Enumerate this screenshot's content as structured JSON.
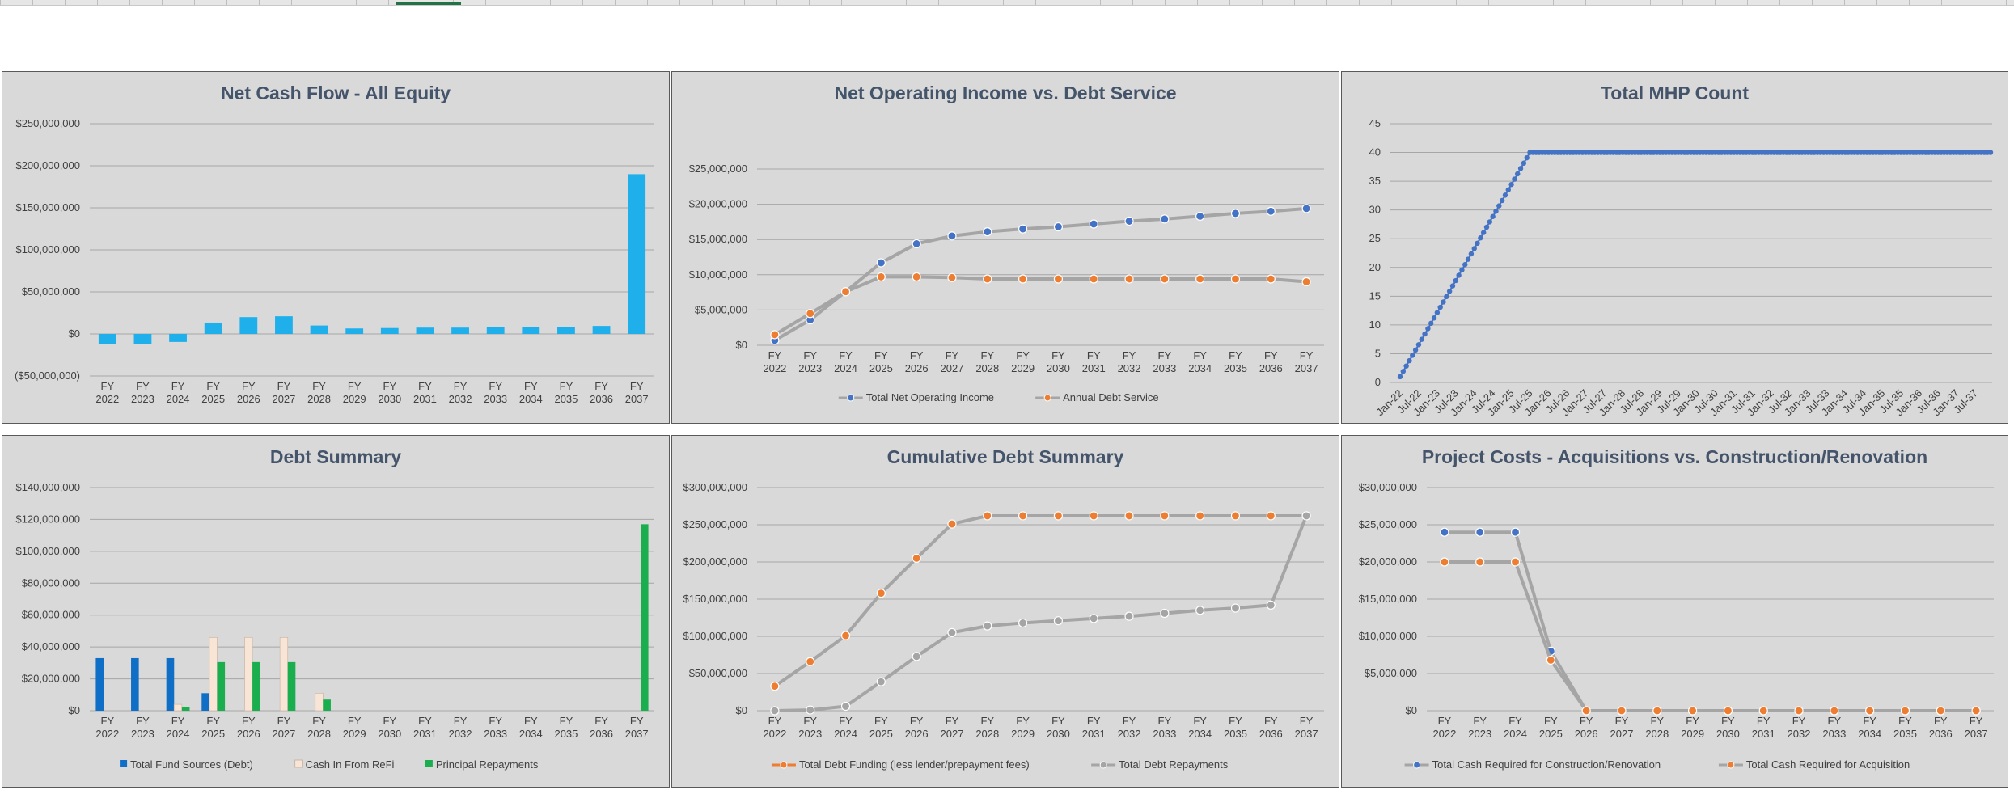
{
  "chart_data": [
    {
      "type": "bar",
      "title": "Net Cash Flow - All Equity",
      "categories": [
        "FY 2022",
        "FY 2023",
        "FY 2024",
        "FY 2025",
        "FY 2026",
        "FY 2027",
        "FY 2028",
        "FY 2029",
        "FY 2030",
        "FY 2031",
        "FY 2032",
        "FY 2033",
        "FY 2034",
        "FY 2035",
        "FY 2036",
        "FY 2037"
      ],
      "series": [
        {
          "values": [
            -12000000,
            -12500000,
            -9500000,
            13500000,
            20000000,
            21000000,
            10000000,
            6500000,
            7000000,
            7500000,
            7500000,
            8000000,
            8500000,
            8500000,
            9500000,
            190000000
          ],
          "color": "#1fb0ec"
        }
      ],
      "yticks": [
        "$250,000,000",
        "$200,000,000",
        "$150,000,000",
        "$100,000,000",
        "$50,000,000",
        "$0",
        "($50,000,000)"
      ],
      "ylim": [
        -50000000,
        250000000
      ],
      "legend": "none"
    },
    {
      "type": "line",
      "title": "Net Operating Income vs. Debt Service",
      "categories": [
        "FY 2022",
        "FY 2023",
        "FY 2024",
        "FY 2025",
        "FY 2026",
        "FY 2027",
        "FY 2028",
        "FY 2029",
        "FY 2030",
        "FY 2031",
        "FY 2032",
        "FY 2033",
        "FY 2034",
        "FY 2035",
        "FY 2036",
        "FY 2037"
      ],
      "series": [
        {
          "name": "Total Net Operating Income",
          "values": [
            700000,
            3600000,
            7600000,
            11700000,
            14400000,
            15500000,
            16100000,
            16500000,
            16800000,
            17200000,
            17600000,
            17900000,
            18300000,
            18700000,
            19000000,
            19400000
          ],
          "color": "#4472c4"
        },
        {
          "name": "Annual Debt Service",
          "values": [
            1500000,
            4500000,
            7600000,
            9700000,
            9700000,
            9600000,
            9400000,
            9400000,
            9400000,
            9400000,
            9400000,
            9400000,
            9400000,
            9400000,
            9400000,
            9000000
          ],
          "color": "#ed7d31"
        }
      ],
      "yticks": [
        "$25,000,000",
        "$20,000,000",
        "$15,000,000",
        "$10,000,000",
        "$5,000,000",
        "$0"
      ],
      "ylim": [
        0,
        25000000
      ],
      "legend": "bottom"
    },
    {
      "type": "line",
      "title": "Total MHP Count",
      "x_start": "Jan-22",
      "x_tick_labels": [
        "Jan-22",
        "Jul-22",
        "Jan-23",
        "Jul-23",
        "Jan-24",
        "Jul-24",
        "Jan-25",
        "Jul-25",
        "Jan-26",
        "Jul-26",
        "Jan-27",
        "Jul-27",
        "Jan-28",
        "Jul-28",
        "Jan-29",
        "Jul-29",
        "Jan-30",
        "Jul-30",
        "Jan-31",
        "Jul-31",
        "Jan-32",
        "Jul-32",
        "Jan-33",
        "Jul-33",
        "Jan-34",
        "Jul-34",
        "Jan-35",
        "Jul-35",
        "Jan-36",
        "Jul-36",
        "Jan-37",
        "Jul-37"
      ],
      "series": [
        {
          "ramp_from": 1,
          "ramp_to": 40,
          "ramp_months": 43,
          "plateau": 40,
          "total_months": 192,
          "color": "#4472c4"
        }
      ],
      "yticks": [
        "45",
        "40",
        "35",
        "30",
        "25",
        "20",
        "15",
        "10",
        "5",
        "0"
      ],
      "ylim": [
        0,
        45
      ],
      "legend": "none"
    },
    {
      "type": "bar",
      "title": "Debt Summary",
      "categories": [
        "FY 2022",
        "FY 2023",
        "FY 2024",
        "FY 2025",
        "FY 2026",
        "FY 2027",
        "FY 2028",
        "FY 2029",
        "FY 2030",
        "FY 2031",
        "FY 2032",
        "FY 2033",
        "FY 2034",
        "FY 2035",
        "FY 2036",
        "FY 2037"
      ],
      "series": [
        {
          "name": "Total Fund Sources (Debt)",
          "values": [
            33000000,
            33000000,
            33000000,
            11000000,
            0,
            0,
            0,
            0,
            0,
            0,
            0,
            0,
            0,
            0,
            0,
            0
          ],
          "color": "#0f6fc6"
        },
        {
          "name": "Cash In From ReFi",
          "values": [
            0,
            0,
            4000000,
            46000000,
            46000000,
            46000000,
            11000000,
            0,
            0,
            0,
            0,
            0,
            0,
            0,
            0,
            0
          ],
          "color": "#f9e5d6"
        },
        {
          "name": "Principal Repayments",
          "values": [
            0,
            0,
            2500000,
            30500000,
            30500000,
            30500000,
            7000000,
            0,
            0,
            0,
            0,
            0,
            0,
            0,
            0,
            117000000
          ],
          "color": "#1aae4e"
        }
      ],
      "yticks": [
        "$140,000,000",
        "$120,000,000",
        "$100,000,000",
        "$80,000,000",
        "$60,000,000",
        "$40,000,000",
        "$20,000,000",
        "$0"
      ],
      "ylim": [
        0,
        140000000
      ],
      "legend": "bottom"
    },
    {
      "type": "line",
      "title": "Cumulative Debt Summary",
      "categories": [
        "FY 2022",
        "FY 2023",
        "FY 2024",
        "FY 2025",
        "FY 2026",
        "FY 2027",
        "FY 2028",
        "FY 2029",
        "FY 2030",
        "FY 2031",
        "FY 2032",
        "FY 2033",
        "FY 2034",
        "FY 2035",
        "FY 2036",
        "FY 2037"
      ],
      "series": [
        {
          "name": "Total Debt Funding (less lender/prepayment fees)",
          "values": [
            33000000,
            66000000,
            101000000,
            158000000,
            205000000,
            251000000,
            262000000,
            262000000,
            262000000,
            262000000,
            262000000,
            262000000,
            262000000,
            262000000,
            262000000,
            262000000
          ],
          "color": "#ed7d31"
        },
        {
          "name": "Total Debt Repayments",
          "values": [
            0,
            1000000,
            6000000,
            39000000,
            73000000,
            105000000,
            114000000,
            118000000,
            121000000,
            124000000,
            127000000,
            131000000,
            135000000,
            138000000,
            142000000,
            262000000
          ],
          "color": "#a5a5a5"
        }
      ],
      "yticks": [
        "$300,000,000",
        "$250,000,000",
        "$200,000,000",
        "$150,000,000",
        "$100,000,000",
        "$50,000,000",
        "$0"
      ],
      "ylim": [
        0,
        300000000
      ],
      "legend": "bottom"
    },
    {
      "type": "line",
      "title": "Project Costs - Acquisitions vs. Construction/Renovation",
      "categories": [
        "FY 2022",
        "FY 2023",
        "FY 2024",
        "FY 2025",
        "FY 2026",
        "FY 2027",
        "FY 2028",
        "FY 2029",
        "FY 2030",
        "FY 2031",
        "FY 2032",
        "FY 2033",
        "FY 2034",
        "FY 2035",
        "FY 2036",
        "FY 2037"
      ],
      "series": [
        {
          "name": "Total Cash Required for Construction/Renovation",
          "values": [
            24000000,
            24000000,
            24000000,
            8000000,
            0,
            0,
            0,
            0,
            0,
            0,
            0,
            0,
            0,
            0,
            0,
            0
          ],
          "color": "#4472c4"
        },
        {
          "name": "Total Cash Required for Acquisition",
          "values": [
            20000000,
            20000000,
            20000000,
            6800000,
            0,
            0,
            0,
            0,
            0,
            0,
            0,
            0,
            0,
            0,
            0,
            0
          ],
          "color": "#ed7d31"
        }
      ],
      "yticks": [
        "$30,000,000",
        "$25,000,000",
        "$20,000,000",
        "$15,000,000",
        "$10,000,000",
        "$5,000,000",
        "$0"
      ],
      "ylim": [
        0,
        30000000
      ],
      "legend": "bottom"
    }
  ]
}
